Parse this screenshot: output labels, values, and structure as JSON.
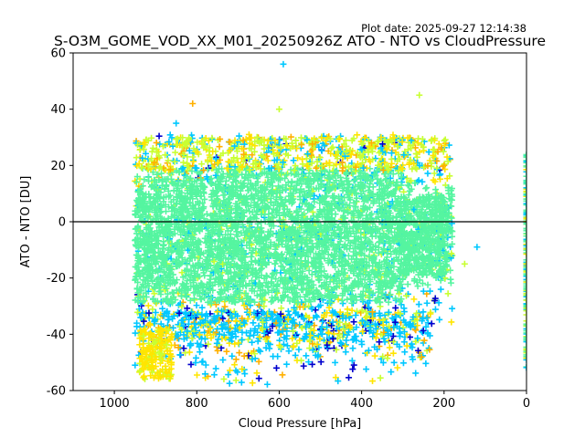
{
  "plot_date": "Plot date: 2025-09-27 12:14:38",
  "chart_data": {
    "type": "scatter",
    "title": "S-O3M_GOME_VOD_XX_M01_20250926Z ATO - NTO vs CloudPressure",
    "xlabel": "Cloud Pressure [hPa]",
    "ylabel": "ATO - NTO [DU]",
    "xlim": [
      1100,
      0
    ],
    "ylim": [
      -60,
      60
    ],
    "xticks": [
      1000,
      800,
      600,
      400,
      200,
      0
    ],
    "yticks": [
      -60,
      -40,
      -20,
      0,
      20,
      40,
      60
    ],
    "reference_line_y": 0,
    "marker": "+",
    "point_colors": [
      "#0000cd",
      "#00c8ff",
      "#7dff7a",
      "#c8ff32",
      "#ffe500",
      "#ffb000"
    ],
    "series": [
      {
        "name": "main_cloud",
        "x_range": [
          950,
          180
        ],
        "y_center": -5,
        "y_spread": 25,
        "dominant_color": "#55f5a0"
      },
      {
        "name": "clear_sky_zero_pressure",
        "x": 0,
        "y_range": [
          -55,
          25
        ]
      }
    ],
    "outliers": [
      {
        "x": 590,
        "y": 56
      },
      {
        "x": 260,
        "y": 45
      },
      {
        "x": 810,
        "y": 42
      },
      {
        "x": 850,
        "y": 35
      },
      {
        "x": 600,
        "y": 40
      },
      {
        "x": 200,
        "y": 20
      },
      {
        "x": 120,
        "y": -9
      },
      {
        "x": 150,
        "y": -15
      }
    ]
  }
}
